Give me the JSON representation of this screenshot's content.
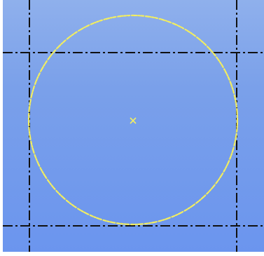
{
  "canvas": {
    "background_top": "#8fb0ec",
    "background_bottom": "#6b95ee",
    "construction_line_color": "#111111",
    "circle_color": "#f2ee63",
    "center_marker_color": "#f2ee63",
    "center_marker_glyph": "cross-icon"
  }
}
